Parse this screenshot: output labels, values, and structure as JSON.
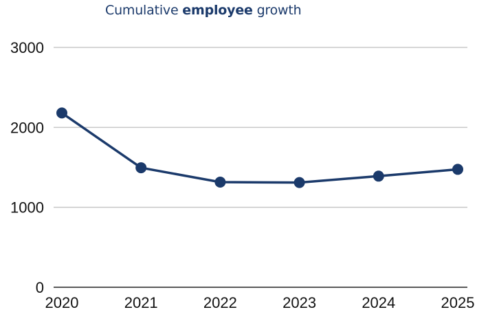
{
  "chart_data": {
    "type": "line",
    "title": {
      "prefix": "Cumulative",
      "emphasis": "employee",
      "suffix": "growth"
    },
    "categories": [
      "2020",
      "2021",
      "2022",
      "2023",
      "2024",
      "2025"
    ],
    "series": [
      {
        "values": [
          2180,
          1495,
          1315,
          1310,
          1390,
          1475
        ]
      }
    ],
    "yticks": [
      "0",
      "1000",
      "2000",
      "3000"
    ],
    "ylim": [
      0,
      3000
    ],
    "grid": true,
    "legend": "none",
    "colors": {
      "series": "#1b3a6b",
      "title": "#1b3a6b",
      "grid": "#c8c8c8"
    }
  }
}
